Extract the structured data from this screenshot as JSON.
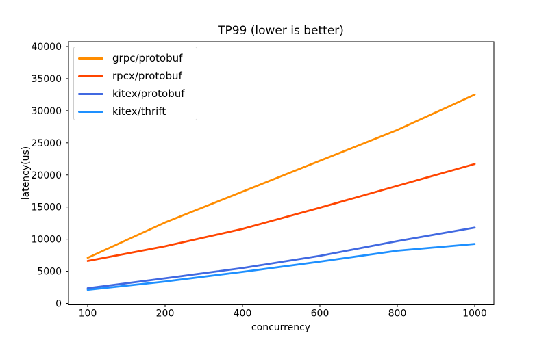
{
  "figure": {
    "title": "TP99 (lower is better)",
    "background_color": "#ffffff"
  },
  "axes": {
    "xlabel": "concurrency",
    "ylabel": "latency(us)",
    "x_tick_labels": [
      "100",
      "200",
      "400",
      "600",
      "800",
      "1000"
    ],
    "y_tick_labels": [
      "0",
      "5000",
      "10000",
      "15000",
      "20000",
      "25000",
      "30000",
      "35000",
      "40000"
    ],
    "spine_color": "#000000"
  },
  "chart_data": {
    "type": "line",
    "title": "TP99 (lower is better)",
    "xlabel": "concurrency",
    "ylabel": "latency(us)",
    "categories": [
      100,
      200,
      400,
      600,
      800,
      1000
    ],
    "series": [
      {
        "name": "grpc/protobuf",
        "color": "#ff8c00",
        "values": [
          7100,
          12600,
          17400,
          22200,
          27000,
          32500
        ]
      },
      {
        "name": "rpcx/protobuf",
        "color": "#ff4500",
        "values": [
          6600,
          8900,
          11600,
          14900,
          18300,
          21700
        ]
      },
      {
        "name": "kitex/protobuf",
        "color": "#4169e1",
        "values": [
          2350,
          3900,
          5500,
          7400,
          9700,
          11800
        ]
      },
      {
        "name": "kitex/thrift",
        "color": "#1e90ff",
        "values": [
          2100,
          3400,
          4900,
          6500,
          8200,
          9250
        ]
      }
    ],
    "ylim": [
      0,
      40000
    ],
    "ytick_step": 5000,
    "grid": false,
    "legend_position": "upper left"
  }
}
